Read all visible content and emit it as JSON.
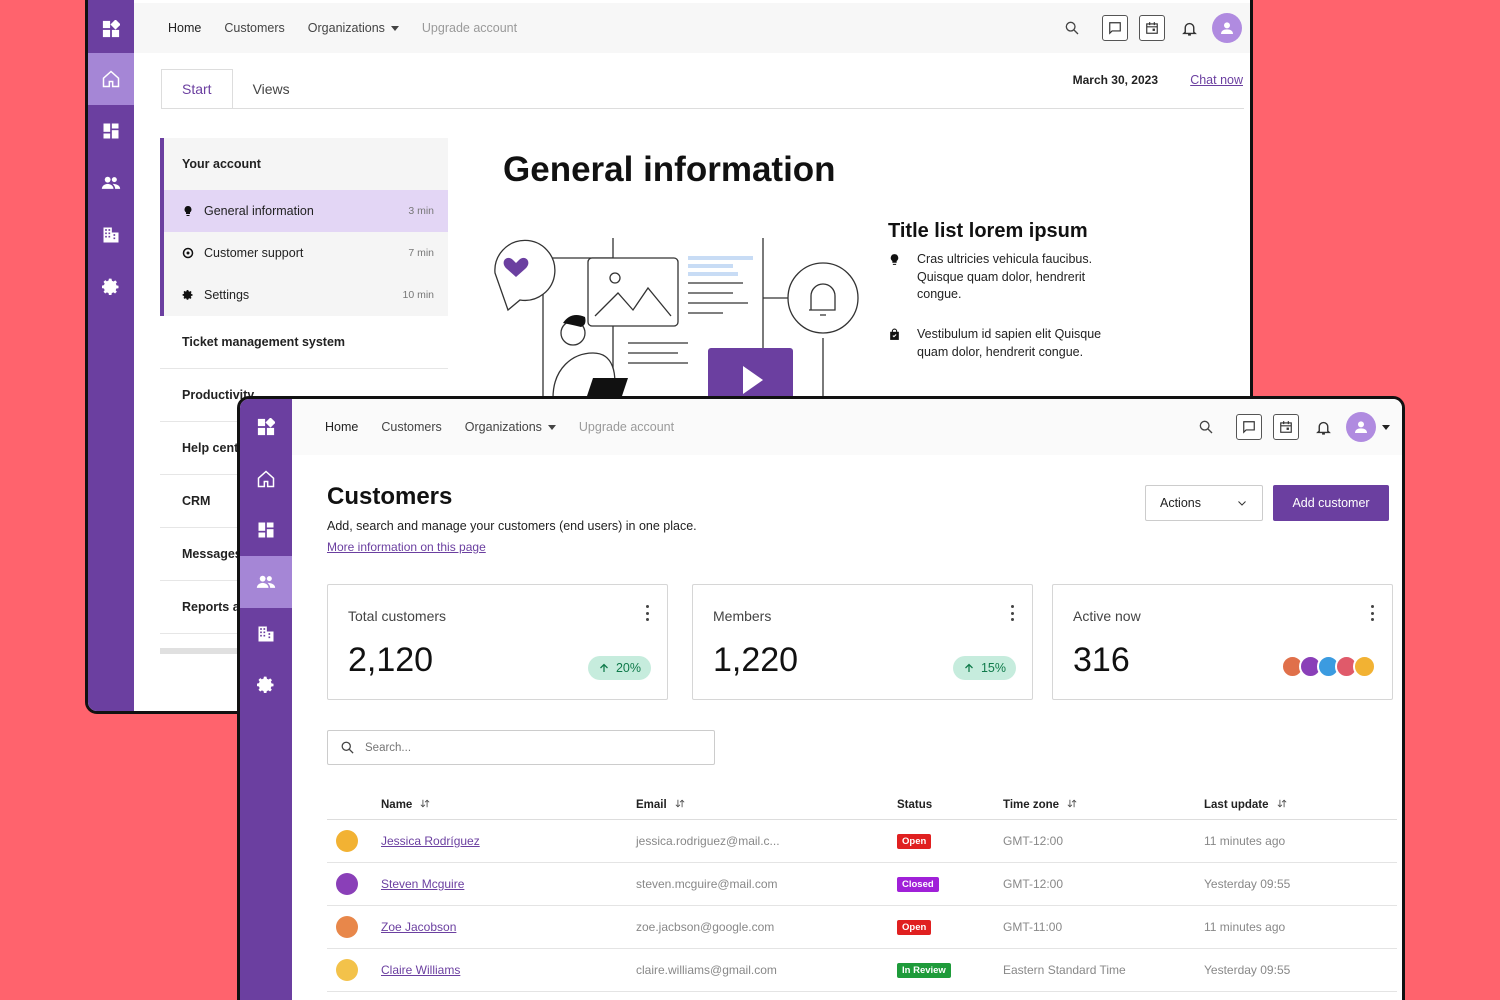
{
  "back": {
    "nav": {
      "home": "Home",
      "customers": "Customers",
      "organizations": "Organizations",
      "upgrade": "Upgrade account"
    },
    "tabs": [
      "Start",
      "Views"
    ],
    "date": "March 30, 2023",
    "chat_now": "Chat now",
    "menu": {
      "section_title": "Your account",
      "items": [
        {
          "label": "General information",
          "time": "3 min",
          "icon": "lightbulb-icon"
        },
        {
          "label": "Customer support",
          "time": "7 min",
          "icon": "support-icon"
        },
        {
          "label": "Settings",
          "time": "10 min",
          "icon": "gear-icon"
        }
      ],
      "sections": [
        "Ticket management system",
        "Productivity",
        "Help center",
        "CRM",
        "Messages",
        "Reports and"
      ]
    },
    "heading": "General information",
    "title_list": "Title list lorem ipsum",
    "list_items": [
      "Cras ultricies vehicula faucibus. Quisque quam dolor, hendrerit congue.",
      "Vestibulum id sapien elit Quisque quam dolor, hendrerit congue."
    ]
  },
  "front": {
    "nav": {
      "home": "Home",
      "customers": "Customers",
      "organizations": "Organizations",
      "upgrade": "Upgrade account"
    },
    "title": "Customers",
    "subtitle": "Add, search and manage your customers (end users) in one place.",
    "more_link": "More information on this page",
    "actions_label": "Actions",
    "add_label": "Add customer",
    "stats": [
      {
        "label": "Total customers",
        "value": "2,120",
        "change": "20%"
      },
      {
        "label": "Members",
        "value": "1,220",
        "change": "15%"
      },
      {
        "label": "Active now",
        "value": "316"
      }
    ],
    "search_placeholder": "Search...",
    "columns": [
      "Name",
      "Email",
      "Status",
      "Time zone",
      "Last update"
    ],
    "rows": [
      {
        "name": "Jessica Rodríguez",
        "email": "jessica.rodriguez@mail.c...",
        "status": "Open",
        "status_color": "#e02020",
        "tz": "GMT-12:00",
        "updated": "11 minutes ago",
        "avatar_color": "#f2b233"
      },
      {
        "name": "Steven Mcguire",
        "email": "steven.mcguire@mail.com",
        "status": "Closed",
        "status_color": "#a020d8",
        "tz": "GMT-12:00",
        "updated": "Yesterday 09:55",
        "avatar_color": "#8a3fb8"
      },
      {
        "name": "Zoe Jacobson",
        "email": "zoe.jacbson@google.com",
        "status": "Open",
        "status_color": "#e02020",
        "tz": "GMT-11:00",
        "updated": "11 minutes ago",
        "avatar_color": "#e8874a"
      },
      {
        "name": "Claire Williams",
        "email": "claire.williams@gmail.com",
        "status": "In Review",
        "status_color": "#1e9b3a",
        "tz": "Eastern Standard Time",
        "updated": "Yesterday 09:55",
        "avatar_color": "#f3c24a"
      }
    ],
    "active_avatar_colors": [
      "#e0704a",
      "#8a3fb8",
      "#3b9be0",
      "#e05a6a",
      "#f2b233"
    ]
  },
  "colors": {
    "brand": "#6b3fa0",
    "background": "#ff636d"
  }
}
